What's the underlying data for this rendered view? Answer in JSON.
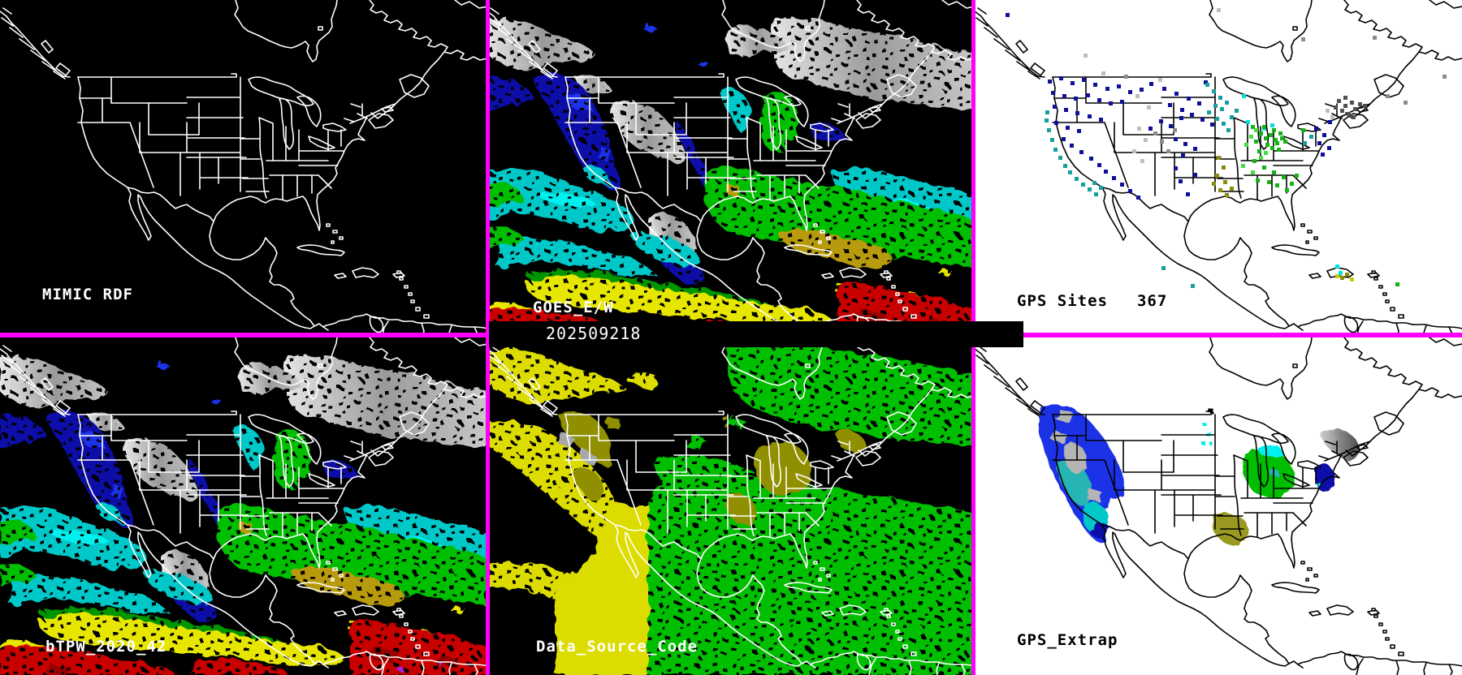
{
  "palette": {
    "magenta": "#FF00FF",
    "black": "#000000",
    "white": "#FFFFFF",
    "gray": "#A8A8A8",
    "navy": "#0A0AA8",
    "royal": "#1E32E6",
    "cyan": "#00C8C8",
    "brightcyan": "#00F0F0",
    "teal": "#28B4B4",
    "green": "#00BE00",
    "darkgreen": "#009600",
    "olive": "#8F8F00",
    "tan": "#B89A10",
    "yellow": "#E6E600",
    "lemon": "#DCDC00",
    "red": "#C80000",
    "darkred": "#960000"
  },
  "panels": {
    "mimic_rdf": {
      "label": "MIMIC RDF"
    },
    "goes_e_w": {
      "label": "GOES_E/W",
      "timestamp": "202509218"
    },
    "gps_sites": {
      "label": "GPS Sites",
      "count": "367",
      "dots": [
        {
          "color": "#101098",
          "points": [
            [
              40,
              18
            ],
            [
              92,
              100
            ],
            [
              106,
              96
            ],
            [
              120,
              102
            ],
            [
              134,
              98
            ],
            [
              148,
              104
            ],
            [
              163,
              109
            ],
            [
              177,
              106
            ],
            [
              191,
              113
            ],
            [
              205,
              110
            ],
            [
              96,
              114
            ],
            [
              110,
              118
            ],
            [
              124,
              121
            ],
            [
              139,
              117
            ],
            [
              153,
              123
            ],
            [
              167,
              127
            ],
            [
              181,
              125
            ],
            [
              98,
              131
            ],
            [
              112,
              135
            ],
            [
              126,
              139
            ],
            [
              141,
              143
            ],
            [
              155,
              147
            ],
            [
              100,
              151
            ],
            [
              114,
              157
            ],
            [
              128,
              161
            ],
            [
              109,
              171
            ],
            [
              119,
              179
            ],
            [
              131,
              187
            ],
            [
              143,
              195
            ],
            [
              153,
              203
            ],
            [
              161,
              211
            ],
            [
              171,
              219
            ],
            [
              181,
              227
            ],
            [
              191,
              235
            ],
            [
              201,
              243
            ],
            [
              216,
              158
            ],
            [
              229,
              149
            ],
            [
              241,
              155
            ],
            [
              254,
              145
            ],
            [
              217,
              103
            ],
            [
              233,
              109
            ],
            [
              248,
              115
            ],
            [
              263,
              121
            ],
            [
              276,
              127
            ],
            [
              240,
              129
            ],
            [
              255,
              135
            ],
            [
              267,
              141
            ],
            [
              280,
              147
            ],
            [
              292,
              153
            ],
            [
              247,
              171
            ],
            [
              259,
              177
            ],
            [
              271,
              183
            ],
            [
              256,
              191
            ],
            [
              247,
              207
            ],
            [
              253,
              223
            ],
            [
              262,
              239
            ],
            [
              271,
              215
            ],
            [
              284,
              101
            ],
            [
              420,
              158
            ],
            [
              430,
              166
            ],
            [
              424,
              176
            ],
            [
              436,
              182
            ],
            [
              428,
              190
            ],
            [
              437,
              150
            ]
          ]
        },
        {
          "color": "#18A0A0",
          "points": [
            [
              88,
              148
            ],
            [
              91,
              160
            ],
            [
              95,
              172
            ],
            [
              99,
              184
            ],
            [
              105,
              194
            ],
            [
              111,
              204
            ],
            [
              117,
              212
            ],
            [
              125,
              220
            ],
            [
              133,
              227
            ],
            [
              141,
              233
            ],
            [
              149,
              239
            ],
            [
              89,
              138
            ],
            [
              147,
              225
            ],
            [
              155,
              231
            ],
            [
              286,
              104
            ],
            [
              294,
              112
            ],
            [
              302,
              120
            ],
            [
              296,
              130
            ],
            [
              288,
              138
            ],
            [
              304,
              134
            ],
            [
              310,
              126
            ],
            [
              298,
              146
            ],
            [
              306,
              152
            ],
            [
              316,
              144
            ],
            [
              322,
              136
            ],
            [
              312,
              160
            ],
            [
              232,
              330
            ],
            [
              268,
              352
            ],
            [
              406,
              176
            ],
            [
              414,
              168
            ]
          ]
        },
        {
          "color": "#00E0E0",
          "points": [
            [
              336,
              150
            ],
            [
              356,
              158
            ],
            [
              366,
              154
            ],
            [
              446,
              328
            ],
            [
              450,
              336
            ],
            [
              331,
              118
            ]
          ]
        },
        {
          "color": "#BEBEBE",
          "points": [
            [
              158,
              90
            ],
            [
              200,
              118
            ],
            [
              214,
              132
            ],
            [
              202,
              158
            ],
            [
              210,
              172
            ],
            [
              196,
              186
            ],
            [
              206,
              198
            ],
            [
              434,
              136
            ],
            [
              440,
              144
            ],
            [
              300,
              12
            ],
            [
              228,
              98
            ],
            [
              136,
              68
            ]
          ]
        },
        {
          "color": "#8C8C8C",
          "points": [
            [
              222,
              164
            ],
            [
              230,
              174
            ],
            [
              238,
              186
            ],
            [
              404,
              48
            ],
            [
              492,
              46
            ],
            [
              508,
              118
            ],
            [
              530,
              126
            ],
            [
              578,
              94
            ],
            [
              186,
              94
            ],
            [
              246,
              160
            ]
          ]
        },
        {
          "color": "#505050",
          "points": [
            [
              448,
              124
            ],
            [
              456,
              130
            ],
            [
              464,
              126
            ],
            [
              452,
              136
            ],
            [
              460,
              140
            ],
            [
              468,
              134
            ],
            [
              474,
              128
            ],
            [
              444,
              132
            ],
            [
              456,
              120
            ],
            [
              466,
              144
            ],
            [
              480,
              130
            ]
          ]
        },
        {
          "color": "#14B414",
          "points": [
            [
              352,
              164
            ],
            [
              358,
              170
            ],
            [
              364,
              166
            ],
            [
              370,
              172
            ],
            [
              360,
              178
            ],
            [
              366,
              182
            ],
            [
              372,
              176
            ],
            [
              378,
              170
            ],
            [
              356,
              156
            ],
            [
              368,
              160
            ],
            [
              376,
              164
            ],
            [
              382,
              174
            ],
            [
              374,
              184
            ],
            [
              346,
              174
            ],
            [
              350,
              186
            ],
            [
              344,
              198
            ],
            [
              356,
              206
            ],
            [
              368,
              212
            ],
            [
              380,
              218
            ],
            [
              372,
              228
            ],
            [
              384,
              234
            ],
            [
              362,
              224
            ],
            [
              348,
              222
            ],
            [
              390,
              226
            ],
            [
              396,
              216
            ],
            [
              520,
              350
            ],
            [
              404,
              160
            ],
            [
              342,
              156
            ]
          ]
        },
        {
          "color": "#46DC46",
          "points": [
            [
              340,
              168
            ],
            [
              346,
              160
            ],
            [
              334,
              178
            ],
            [
              352,
              194
            ],
            [
              342,
              212
            ],
            [
              330,
              204
            ],
            [
              358,
              188
            ]
          ]
        },
        {
          "color": "#8C8C0A",
          "points": [
            [
              300,
              194
            ],
            [
              306,
              206
            ],
            [
              298,
              216
            ],
            [
              308,
              224
            ],
            [
              302,
              234
            ],
            [
              310,
              240
            ],
            [
              316,
              232
            ],
            [
              294,
              226
            ],
            [
              452,
              342
            ],
            [
              458,
              338
            ]
          ]
        },
        {
          "color": "#C8C814",
          "points": [
            [
              464,
              344
            ],
            [
              446,
              340
            ]
          ]
        }
      ]
    },
    "btpw": {
      "label": "bTPW_2020_42"
    },
    "data_source_code": {
      "label": "Data_Source_Code"
    },
    "gps_extrap": {
      "label": "GPS_Extrap"
    }
  }
}
